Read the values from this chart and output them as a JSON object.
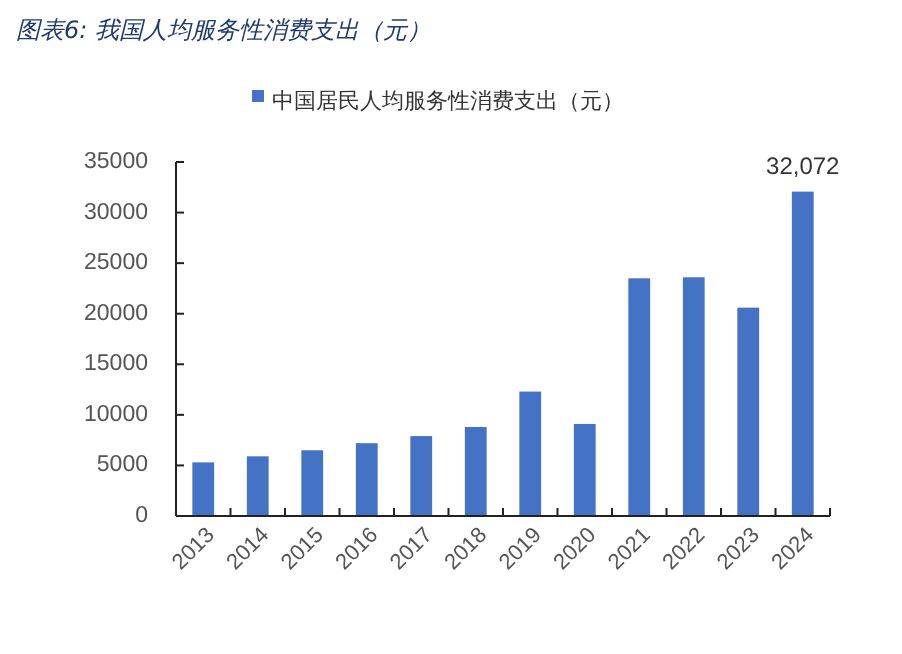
{
  "chart_data": {
    "type": "bar",
    "title": "图表6:  我国人均服务性消费支出（元）",
    "categories": [
      "2013",
      "2014",
      "2015",
      "2016",
      "2017",
      "2018",
      "2019",
      "2020",
      "2021",
      "2022",
      "2023",
      "2024"
    ],
    "series": [
      {
        "name": "中国居民人均服务性消费支出（元）",
        "color": "#4472c4",
        "values": [
          5300,
          5900,
          6500,
          7200,
          7900,
          8800,
          12300,
          9100,
          23500,
          23600,
          20600,
          32072
        ],
        "value_labels": [
          null,
          null,
          null,
          null,
          null,
          null,
          null,
          null,
          null,
          null,
          null,
          "32,072"
        ]
      }
    ],
    "ylim": [
      0,
      35000
    ],
    "yticks": [
      0,
      5000,
      10000,
      15000,
      20000,
      25000,
      30000,
      35000
    ],
    "grid": false,
    "legend": "top"
  }
}
